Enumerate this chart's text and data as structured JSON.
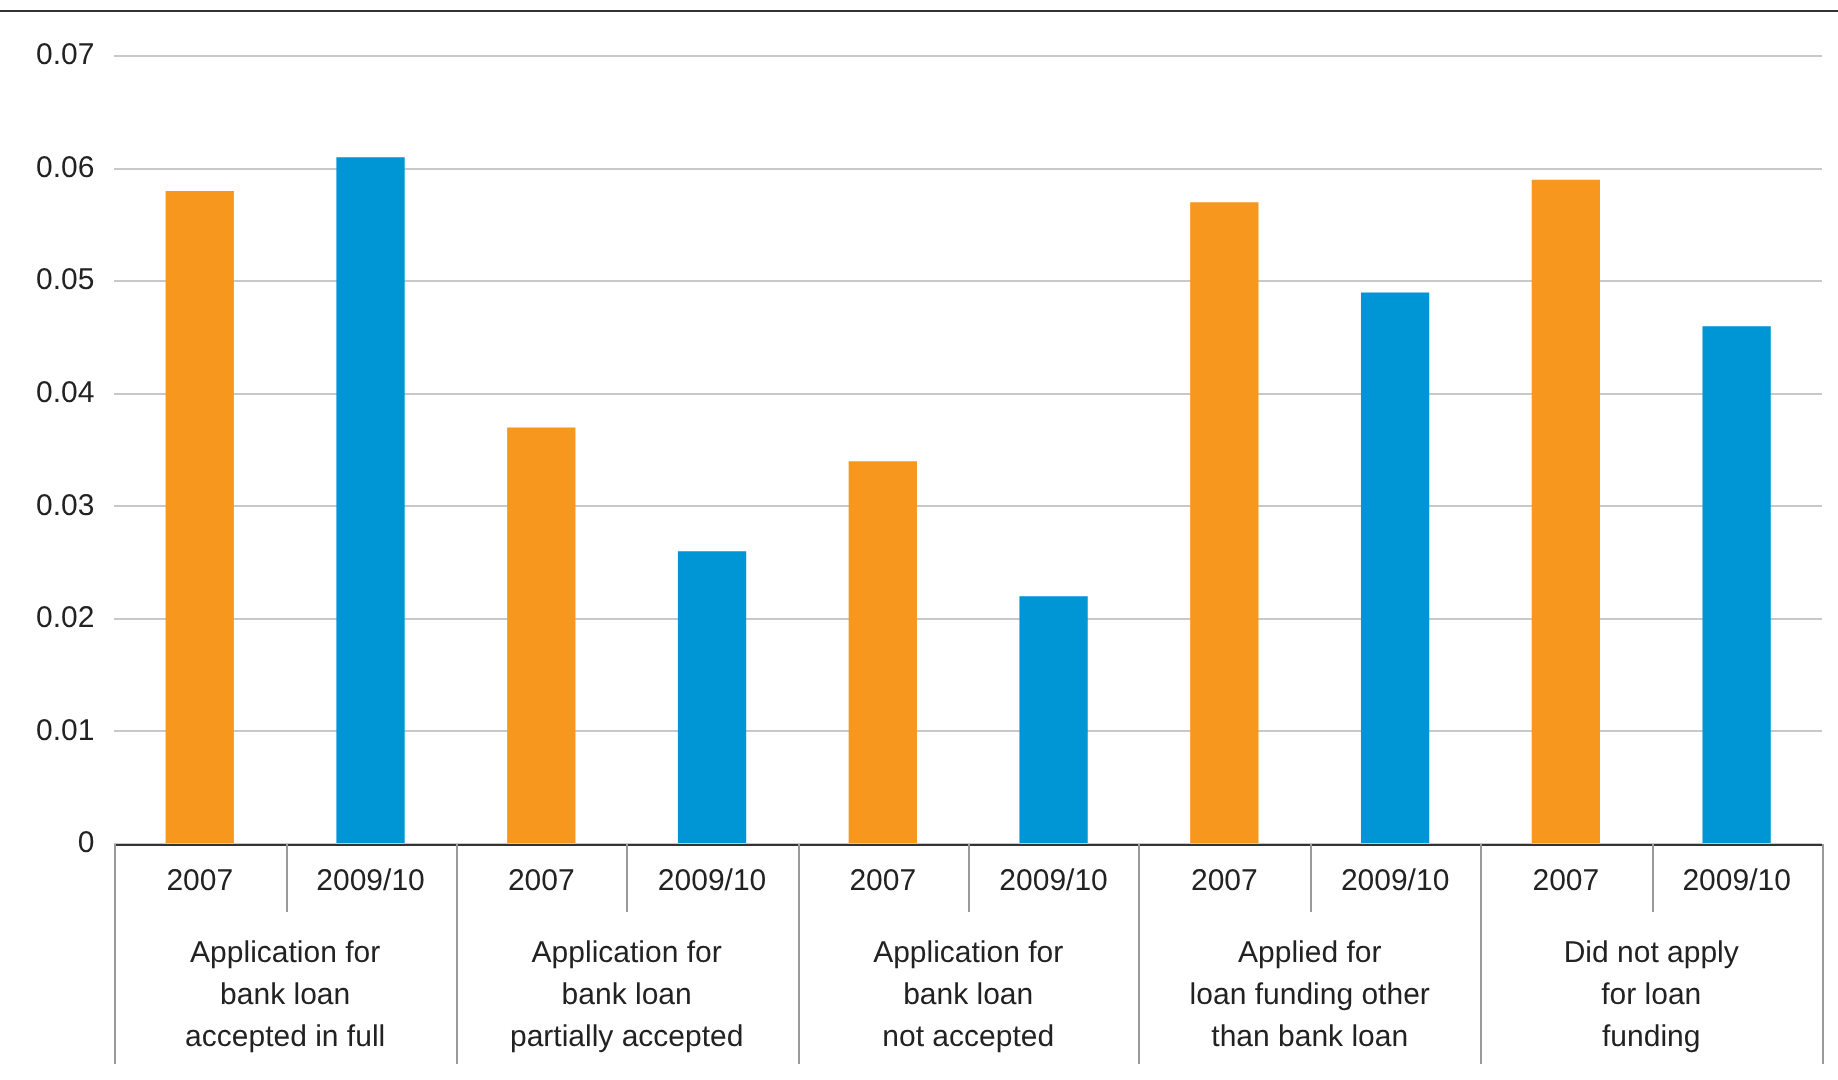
{
  "chart_data": {
    "type": "bar",
    "categories": [
      "Application for\nbank loan\naccepted in full",
      "Application for\nbank loan\npartially accepted",
      "Application for\nbank loan\nnot accepted",
      "Applied for\nloan funding other\nthan bank loan",
      "Did not apply\nfor loan\nfunding"
    ],
    "series": [
      {
        "name": "2007",
        "color": "#f7971e",
        "values": [
          0.058,
          0.037,
          0.034,
          0.057,
          0.059
        ]
      },
      {
        "name": "2009/10",
        "color": "#0096d6",
        "values": [
          0.061,
          0.026,
          0.022,
          0.049,
          0.046
        ]
      }
    ],
    "ylim": [
      0,
      0.07
    ],
    "yticks": [
      0,
      0.01,
      0.02,
      0.03,
      0.04,
      0.05,
      0.06,
      0.07
    ],
    "grid": "y",
    "legend": false
  }
}
